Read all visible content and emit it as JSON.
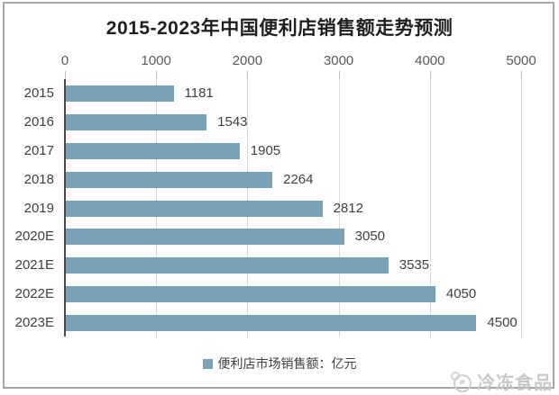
{
  "chart": {
    "legend_label": "便利店市场销售额：亿元"
  },
  "chart_data": {
    "type": "bar",
    "orientation": "horizontal",
    "title": "2015-2023年中国便利店销售额走势预测",
    "categories": [
      "2015",
      "2016",
      "2017",
      "2018",
      "2019",
      "2020E",
      "2021E",
      "2022E",
      "2023E"
    ],
    "values": [
      1181,
      1543,
      1905,
      2264,
      2812,
      3050,
      3535,
      4050,
      4500
    ],
    "xlabel": "",
    "ylabel": "",
    "xlim": [
      0,
      5000
    ],
    "xticks": [
      0,
      1000,
      2000,
      3000,
      4000,
      5000
    ],
    "grid": true,
    "legend_position": "bottom",
    "legend": [
      {
        "label": "便利店市场销售额：亿元",
        "color": "#78a2b5"
      }
    ],
    "data_labels": true
  },
  "colors": {
    "bar": "#78a2b5",
    "gridline": "#d9d9d9",
    "axis_line": "#4a4a4a",
    "tick": "#bfbfbf",
    "text": "#3f3f3f",
    "axis_text": "#595959",
    "title_text": "#1f1f1f",
    "frame_border": "#a6a6a6",
    "watermark_text": "#c8c8c8"
  },
  "watermark": {
    "text": "冷冻食品",
    "icon": "circle-logo-icon"
  }
}
